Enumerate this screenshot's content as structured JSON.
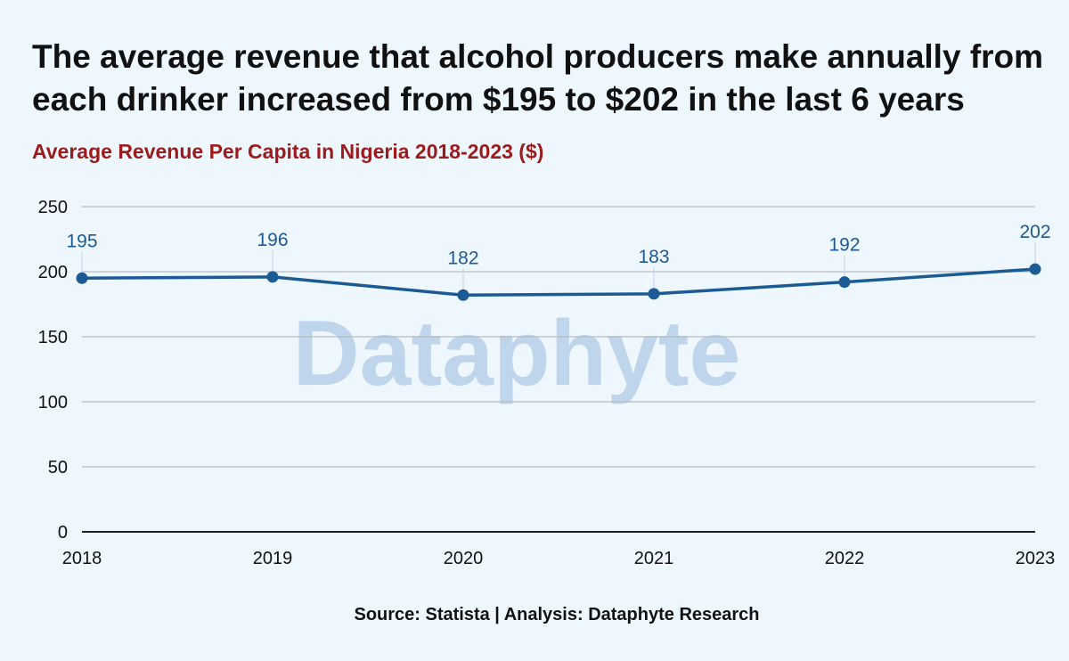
{
  "headline": "The average revenue that alcohol producers make annually from each drinker increased from $195 to $202 in the last 6 years",
  "subtitle": "Average Revenue Per Capita in Nigeria 2018-2023 ($)",
  "watermark": "Dataphyte",
  "source": "Source: Statista | Analysis: Dataphyte Research",
  "colors": {
    "line": "#1b5a92",
    "title_accent": "#9b1b1b",
    "background": "#eef6fe",
    "grid": "#b9bcc0"
  },
  "chart_data": {
    "type": "line",
    "title": "Average Revenue Per Capita in Nigeria 2018-2023 ($)",
    "xlabel": "",
    "ylabel": "",
    "categories": [
      "2018",
      "2019",
      "2020",
      "2021",
      "2022",
      "2023"
    ],
    "series": [
      {
        "values": [
          195,
          196,
          182,
          183,
          192,
          202
        ]
      }
    ],
    "ylim": [
      0,
      250
    ],
    "yticks": [
      "0",
      "50",
      "100",
      "150",
      "200",
      "250"
    ],
    "data_labels": [
      "195",
      "196",
      "182",
      "183",
      "192",
      "202"
    ],
    "grid": true,
    "legend": "none"
  }
}
